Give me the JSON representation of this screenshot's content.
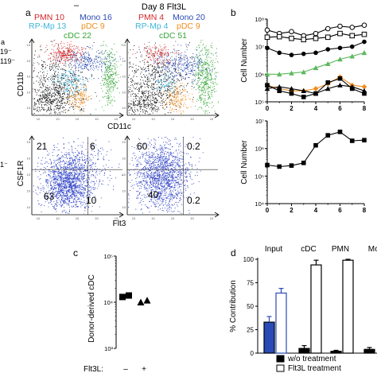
{
  "panels": {
    "a": {
      "letter": "a",
      "left_partial_label_1": "a",
      "left_partial_label_2": "19⁻",
      "left_partial_label_3": "119⁻",
      "left_partial_label_4": "1⁻",
      "col1_title": "–",
      "col2_title": "Day 8 Flt3L",
      "top_y_axis": "CD11b",
      "top_x_axis": "CD11c",
      "bottom_y_axis": "CSF1R",
      "bottom_x_axis": "Flt3",
      "plot1_labels": {
        "pmn": "PMN 10",
        "mono": "Mono 16",
        "rpmp": "RP-Mp 13",
        "pdc": "pDC 9",
        "cdc": "cDC 22"
      },
      "plot2_labels": {
        "pmn": "PMN 4",
        "mono": "Mono 20",
        "rpmp": "RP-Mp 4",
        "pdc": "pDC 9",
        "cdc": "cDC 51"
      },
      "quad1": {
        "ul": "21",
        "ur": "6",
        "ll": "63",
        "lr": "10"
      },
      "quad2": {
        "ul": "60",
        "ur": "0.2",
        "ll": "40",
        "lr": "0.2"
      },
      "colors": {
        "pmn": "#d62728",
        "mono": "#2a4bb5",
        "rpmp": "#3fb6d9",
        "pdc": "#f28e1c",
        "cdc": "#35a535",
        "dots": "#2b3fc4"
      }
    },
    "b": {
      "letter": "b"
    },
    "c": {
      "letter": "c"
    },
    "d": {
      "letter": "d"
    }
  },
  "chart_data": [
    {
      "id": "b-top",
      "type": "line",
      "xlabel": "",
      "ylabel": "Cell Number",
      "xlim": [
        0,
        8
      ],
      "ylim": [
        100000,
        100000000
      ],
      "yscale": "log",
      "xticks": [
        0,
        2,
        4,
        6,
        8
      ],
      "yticks": [
        "10⁸",
        "10⁷",
        "10⁶",
        "10⁵"
      ],
      "series": [
        {
          "marker": "circle-open",
          "color": "#000000",
          "x": [
            0,
            1,
            2,
            3,
            4,
            5,
            6,
            7,
            8
          ],
          "y": [
            40000000,
            30000000,
            35000000,
            25000000,
            30000000,
            45000000,
            55000000,
            50000000,
            60000000
          ]
        },
        {
          "marker": "square-open",
          "color": "#000000",
          "x": [
            0,
            1,
            2,
            3,
            4,
            5,
            6,
            7,
            8
          ],
          "y": [
            22000000,
            23000000,
            20000000,
            18000000,
            20000000,
            22000000,
            30000000,
            25000000,
            28000000
          ]
        },
        {
          "marker": "circle-filled",
          "color": "#000000",
          "x": [
            0,
            1,
            2,
            3,
            4,
            5,
            6,
            7,
            8
          ],
          "y": [
            9000000,
            6000000,
            5000000,
            5500000,
            6000000,
            8000000,
            9000000,
            10000000,
            15000000
          ]
        },
        {
          "marker": "triangle-filled",
          "color": "#5cb85c",
          "x": [
            0,
            1,
            2,
            3,
            4,
            5,
            6,
            7,
            8
          ],
          "y": [
            1000000,
            1000000,
            1100000,
            1200000,
            1700000,
            2400000,
            3500000,
            4500000,
            6000000
          ]
        },
        {
          "marker": "diamond-filled",
          "color": "#f08c1e",
          "x": [
            0,
            1,
            2,
            3,
            4,
            5,
            6,
            7,
            8
          ],
          "y": [
            400000,
            300000,
            250000,
            250000,
            300000,
            450000,
            800000,
            400000,
            350000
          ]
        },
        {
          "marker": "square-filled",
          "color": "#000000",
          "x": [
            0,
            1,
            2,
            3,
            4,
            5,
            6,
            7,
            8
          ],
          "y": [
            400000,
            250000,
            200000,
            150000,
            200000,
            500000,
            700000,
            300000,
            200000
          ]
        },
        {
          "marker": "triangle-filled",
          "color": "#000000",
          "x": [
            0,
            1,
            2,
            3,
            4,
            5,
            6,
            7,
            8
          ],
          "y": [
            300000,
            350000,
            300000,
            250000,
            200000,
            300000,
            400000,
            350000,
            250000
          ]
        }
      ]
    },
    {
      "id": "b-bottom",
      "type": "line",
      "xlabel": "",
      "ylabel": "Cell Number",
      "xlim": [
        0,
        8
      ],
      "ylim": [
        10000,
        10000000
      ],
      "yscale": "log",
      "xticks": [
        0,
        2,
        4,
        6,
        8
      ],
      "yticks": [
        "10⁷",
        "10⁶",
        "10⁵",
        "10⁴"
      ],
      "series": [
        {
          "marker": "square-filled",
          "color": "#000000",
          "x": [
            0,
            1,
            2,
            3,
            4,
            5,
            6,
            7,
            8
          ],
          "y": [
            250000,
            220000,
            240000,
            300000,
            1300000,
            3000000,
            4000000,
            1900000,
            2000000
          ]
        }
      ]
    },
    {
      "id": "c",
      "type": "scatter",
      "xlabel": "Flt3L:",
      "ylabel": "Donor-derived cDC",
      "yscale": "log",
      "ylim": [
        1000,
        100000
      ],
      "yticks": [
        "10⁵",
        "10⁴",
        "10³"
      ],
      "categories": [
        "–",
        "+"
      ],
      "points": [
        {
          "category": "–",
          "marker": "square-filled",
          "values": [
            13000,
            14000
          ]
        },
        {
          "category": "+",
          "marker": "triangle-filled",
          "values": [
            10000,
            11000
          ]
        }
      ]
    },
    {
      "id": "d",
      "type": "bar",
      "xlabel": "",
      "ylabel": "% Contribution",
      "ylim": [
        0,
        100
      ],
      "yticks": [
        "100",
        "75",
        "50",
        "25",
        "0"
      ],
      "categories": [
        "Input",
        "cDC",
        "PMN",
        "Mσ"
      ],
      "series": [
        {
          "name": "w/o treatment",
          "color": "#000000",
          "values": [
            33,
            5,
            2,
            4
          ],
          "errors": [
            6,
            3,
            1,
            2
          ]
        },
        {
          "name": "Flt3L treatment",
          "color": "#ffffff",
          "values": [
            64,
            94,
            99,
            0
          ],
          "errors": [
            5,
            5,
            1,
            0
          ]
        }
      ],
      "input_colors": {
        "w/o treatment": "#2a4bb5",
        "Flt3L treatment": "#ffffff",
        "flt3l_edge": "#2a4bb5"
      },
      "legend": "bottom"
    }
  ]
}
